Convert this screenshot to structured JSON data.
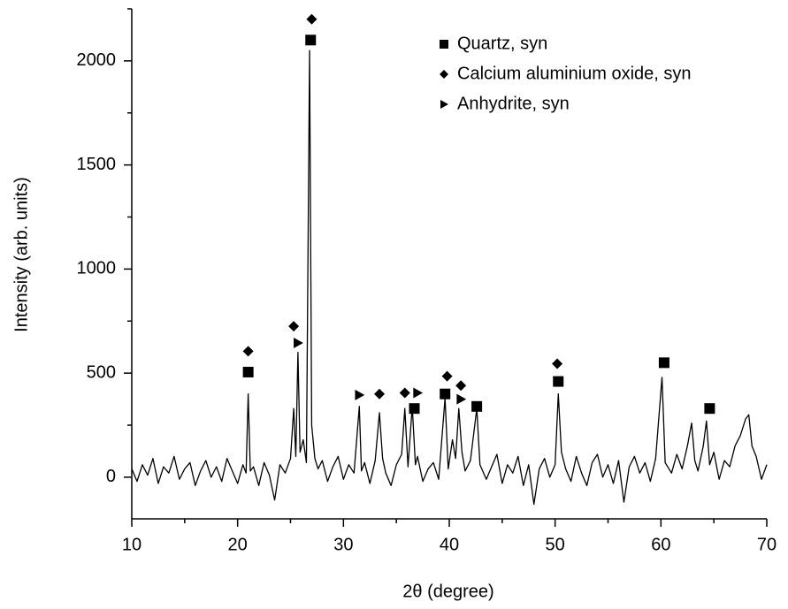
{
  "chart_data": {
    "type": "line",
    "xlabel": "2θ (degree)",
    "ylabel": "Intensity (arb. units)",
    "xlim": [
      10,
      70
    ],
    "ylim": [
      -200,
      2250
    ],
    "xticks": [
      10,
      20,
      30,
      40,
      50,
      60,
      70
    ],
    "yticks": [
      0,
      500,
      1000,
      1500,
      2000
    ],
    "xminorticks": [
      15,
      25,
      35,
      45,
      55,
      65
    ],
    "yminorticks": [
      -250,
      250,
      750,
      1250,
      1750,
      2250
    ],
    "color": "#000000",
    "x": [
      10,
      10.5,
      11,
      11.5,
      12,
      12.5,
      13,
      13.5,
      14,
      14.5,
      15,
      15.5,
      16,
      16.5,
      17,
      17.5,
      18,
      18.5,
      19,
      19.5,
      20,
      20.5,
      20.8,
      21,
      21.2,
      21.5,
      22,
      22.5,
      23,
      23.5,
      24,
      24.5,
      25,
      25.3,
      25.5,
      25.7,
      25.9,
      26.2,
      26.5,
      26.8,
      27,
      27.3,
      27.6,
      28,
      28.5,
      29,
      29.5,
      30,
      30.5,
      31,
      31.5,
      31.7,
      32,
      32.5,
      33,
      33.4,
      33.7,
      34,
      34.5,
      35,
      35.5,
      35.8,
      36.1,
      36.5,
      36.8,
      37,
      37.5,
      38,
      38.5,
      39,
      39.6,
      39.9,
      40.3,
      40.6,
      40.9,
      41.2,
      41.5,
      42,
      42.6,
      42.9,
      43.5,
      44,
      44.5,
      45,
      45.5,
      46,
      46.5,
      47,
      47.5,
      48,
      48.5,
      49,
      49.5,
      50,
      50.3,
      50.6,
      51,
      51.5,
      52,
      52.5,
      53,
      53.5,
      54,
      54.5,
      55,
      55.5,
      56,
      56.5,
      57,
      57.5,
      58,
      58.5,
      59,
      59.5,
      60.1,
      60.4,
      61,
      61.5,
      62,
      62.5,
      62.9,
      63.2,
      63.5,
      64,
      64.3,
      64.6,
      65,
      65.5,
      66,
      66.5,
      67,
      67.5,
      68,
      68.3,
      68.6,
      69,
      69.5,
      70
    ],
    "values": [
      40,
      -20,
      60,
      10,
      90,
      -30,
      50,
      20,
      100,
      -10,
      40,
      70,
      -40,
      30,
      80,
      0,
      50,
      -20,
      90,
      30,
      -30,
      60,
      20,
      400,
      30,
      50,
      -40,
      70,
      10,
      -110,
      60,
      20,
      90,
      330,
      100,
      600,
      120,
      180,
      70,
      2050,
      250,
      90,
      40,
      80,
      -20,
      50,
      100,
      -10,
      60,
      20,
      340,
      30,
      70,
      -30,
      80,
      310,
      90,
      20,
      -40,
      60,
      110,
      330,
      50,
      340,
      60,
      100,
      -20,
      40,
      70,
      -10,
      380,
      40,
      180,
      90,
      330,
      120,
      30,
      80,
      330,
      60,
      -10,
      50,
      110,
      -30,
      60,
      20,
      100,
      -40,
      60,
      -130,
      40,
      90,
      0,
      60,
      400,
      120,
      40,
      -20,
      100,
      20,
      -40,
      70,
      110,
      0,
      60,
      -30,
      80,
      -120,
      50,
      100,
      20,
      70,
      -20,
      90,
      480,
      70,
      20,
      110,
      40,
      150,
      260,
      80,
      30,
      150,
      270,
      60,
      120,
      -10,
      80,
      50,
      150,
      200,
      280,
      300,
      150,
      100,
      -10,
      60
    ],
    "markers": [
      {
        "name": "Quartz, syn",
        "marker": "square",
        "color": "#000000",
        "x": [
          21,
          26.9,
          36.7,
          39.6,
          42.6,
          50.3,
          60.3,
          64.6
        ],
        "values": [
          505,
          2100,
          330,
          400,
          340,
          460,
          550,
          330
        ]
      },
      {
        "name": "Calcium aluminium oxide, syn",
        "marker": "diamond",
        "color": "#000000",
        "x": [
          21,
          25.3,
          27,
          33.4,
          35.8,
          39.8,
          41.1,
          50.2
        ],
        "values": [
          605,
          725,
          2200,
          400,
          405,
          485,
          440,
          545
        ]
      },
      {
        "name": "Anhydrite, syn",
        "marker": "triangle",
        "color": "#000000",
        "x": [
          25.7,
          31.5,
          37,
          41.1
        ],
        "values": [
          645,
          395,
          405,
          375
        ]
      }
    ]
  }
}
